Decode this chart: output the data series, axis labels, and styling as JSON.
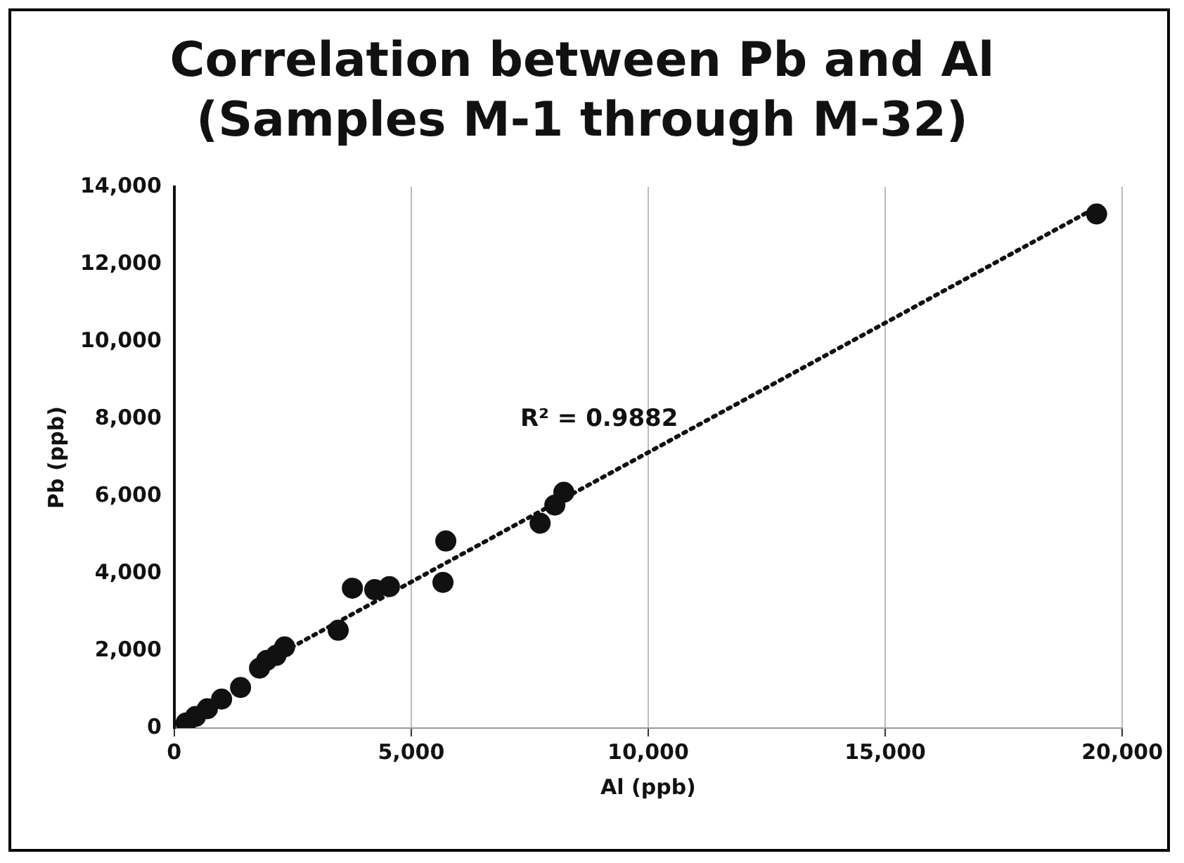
{
  "chart_data": {
    "type": "scatter",
    "title": [
      "Correlation between Pb and Al",
      "(Samples M-1 through M-32)"
    ],
    "xlabel": "Al (ppb)",
    "ylabel": "Pb (ppb)",
    "series": [
      {
        "color": "#111111",
        "marker": "circle",
        "x": [
          19460,
          5730,
          5670,
          7720,
          8030,
          8220,
          3760,
          4230,
          4540,
          3460,
          2330,
          2150,
          1950,
          1800,
          1400,
          1000,
          700,
          450,
          250
        ],
        "values": [
          13300,
          4840,
          3770,
          5300,
          5770,
          6100,
          3620,
          3580,
          3660,
          2530,
          2100,
          1880,
          1750,
          1550,
          1050,
          750,
          500,
          300,
          130
        ]
      },
      {
        "type": "line",
        "color": "#111111",
        "marker": "none",
        "line_style": "dotted",
        "x": [
          2000,
          19500
        ],
        "values": [
          1770,
          13500
        ]
      }
    ],
    "xlim": [
      0,
      20000
    ],
    "xticks": [
      {
        "value": 0,
        "label": "0"
      },
      {
        "value": 5000,
        "label": "5,000"
      },
      {
        "value": 10000,
        "label": "10,000"
      },
      {
        "value": 15000,
        "label": "15,000"
      },
      {
        "value": 20000,
        "label": "20,000"
      }
    ],
    "ylim": [
      0,
      14000
    ],
    "yticks": [
      {
        "value": 0,
        "label": "0"
      },
      {
        "value": 2000,
        "label": "2,000"
      },
      {
        "value": 4000,
        "label": "4,000"
      },
      {
        "value": 6000,
        "label": "6,000"
      },
      {
        "value": 8000,
        "label": "8,000"
      },
      {
        "value": 10000,
        "label": "10,000"
      },
      {
        "value": 12000,
        "label": "12,000"
      },
      {
        "value": 14000,
        "label": "14,000"
      }
    ],
    "grid": "x",
    "legend": false,
    "annotations": [
      "R² = 0.9882"
    ]
  }
}
